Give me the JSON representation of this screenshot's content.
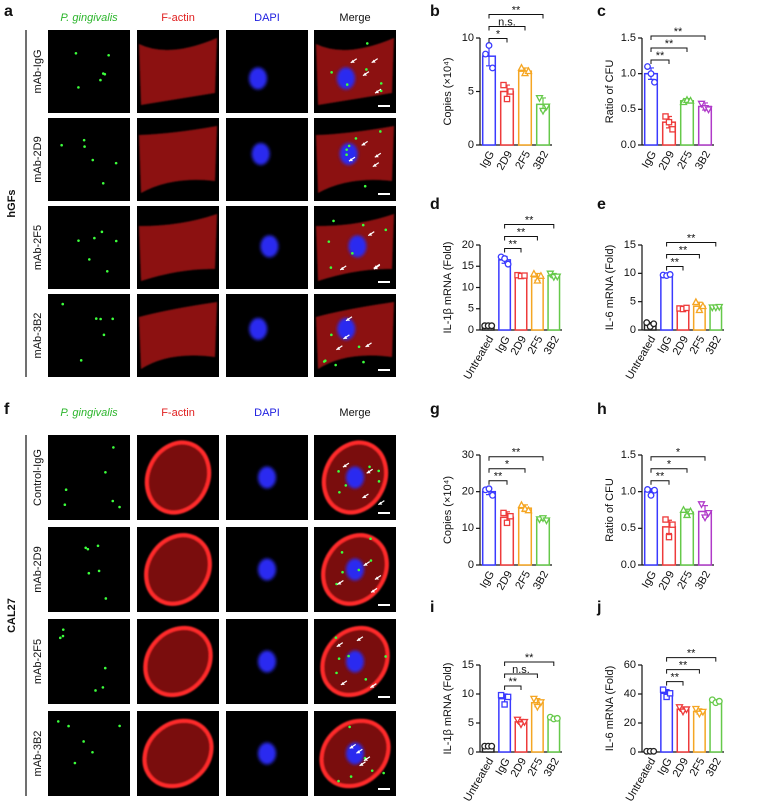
{
  "image_panels": [
    {
      "label": "a",
      "group": "hGFs",
      "columns": [
        "P. gingivalis",
        "F-actin",
        "DAPI",
        "Merge"
      ],
      "rows": [
        "mAb-IgG",
        "mAb-2D9",
        "mAb-2F5",
        "mAb-3B2"
      ]
    },
    {
      "label": "f",
      "group": "CAL27",
      "columns": [
        "P. gingivalis",
        "F-actin",
        "DAPI",
        "Merge"
      ],
      "rows": [
        "Control-IgG",
        "mAb-2D9",
        "mAb-2F5",
        "mAb-3B2"
      ]
    }
  ],
  "chart_data": [
    {
      "type": "bar",
      "label": "b",
      "ylabel": "Copies (×10⁴)",
      "categories": [
        "IgG",
        "2D9",
        "2F5",
        "3B2"
      ],
      "values": [
        8.3,
        5.0,
        6.9,
        3.8
      ],
      "errors": [
        0.9,
        0.6,
        0.3,
        0.6
      ],
      "points": [
        [
          8.5,
          9.3,
          7.2
        ],
        [
          5.6,
          4.3,
          5.0
        ],
        [
          7.2,
          6.7,
          6.9
        ],
        [
          4.4,
          3.2,
          3.6
        ]
      ],
      "colors": [
        "#3a3aff",
        "#ee3b3b",
        "#f5a623",
        "#66c94a"
      ],
      "markers": [
        "circle",
        "square",
        "triangle",
        "down"
      ],
      "ylim": [
        0,
        10
      ],
      "yticks": [
        0,
        5,
        10
      ],
      "annotations": [
        {
          "between": [
            "IgG",
            "2D9"
          ],
          "label": "*"
        },
        {
          "between": [
            "IgG",
            "2F5"
          ],
          "label": "n.s."
        },
        {
          "between": [
            "IgG",
            "3B2"
          ],
          "label": "**"
        }
      ]
    },
    {
      "type": "bar",
      "label": "c",
      "ylabel": "Ratio of CFU",
      "categories": [
        "IgG",
        "2D9",
        "2F5",
        "3B2"
      ],
      "values": [
        1.0,
        0.32,
        0.62,
        0.54
      ],
      "errors": [
        0.08,
        0.08,
        0.03,
        0.05
      ],
      "points": [
        [
          1.1,
          1.0,
          0.88
        ],
        [
          0.4,
          0.32,
          0.22
        ],
        [
          0.6,
          0.63,
          0.62
        ],
        [
          0.58,
          0.52,
          0.5
        ]
      ],
      "colors": [
        "#3a3aff",
        "#ee3b3b",
        "#66c94a",
        "#b03ac9"
      ],
      "markers": [
        "circle",
        "square",
        "triangle",
        "down"
      ],
      "ylim": [
        0,
        1.5
      ],
      "yticks": [
        {
          "value": 0,
          "label": "0.0"
        },
        {
          "value": 0.5,
          "label": "0.5"
        },
        {
          "value": 1,
          "label": "1.0"
        },
        {
          "value": 1.5,
          "label": "1.5"
        }
      ],
      "annotations": [
        {
          "between": [
            "IgG",
            "2D9"
          ],
          "label": "**"
        },
        {
          "between": [
            "IgG",
            "2F5"
          ],
          "label": "**"
        },
        {
          "between": [
            "IgG",
            "3B2"
          ],
          "label": "**"
        }
      ]
    },
    {
      "type": "bar",
      "label": "d",
      "ylabel": "IL-1β mRNA (Fold)",
      "categories": [
        "Untreated",
        "IgG",
        "2D9",
        "2F5",
        "3B2"
      ],
      "values": [
        1.0,
        16.5,
        12.8,
        12.5,
        12.8
      ],
      "errors": [
        0.1,
        0.8,
        0.3,
        0.8,
        0.5
      ],
      "points": [
        [
          1.0,
          1.0,
          1.0
        ],
        [
          17.2,
          16.8,
          15.5
        ],
        [
          12.9,
          12.7,
          12.8
        ],
        [
          13.2,
          11.6,
          12.7
        ],
        [
          13.3,
          12.5,
          12.6
        ]
      ],
      "colors": [
        "#222222",
        "#3a3aff",
        "#ee3b3b",
        "#f5a623",
        "#66c94a"
      ],
      "markers": [
        "circle",
        "circle",
        "square",
        "triangle",
        "down"
      ],
      "ylim": [
        0,
        20
      ],
      "yticks": [
        0,
        5,
        10,
        15,
        20
      ],
      "annotations": [
        {
          "between": [
            "IgG",
            "2D9"
          ],
          "label": "**"
        },
        {
          "between": [
            "IgG",
            "2F5"
          ],
          "label": "**"
        },
        {
          "between": [
            "IgG",
            "3B2"
          ],
          "label": "**"
        }
      ]
    },
    {
      "type": "bar",
      "label": "e",
      "ylabel": "IL-6 mRNA (Fold)",
      "categories": [
        "Untreated",
        "IgG",
        "2D9",
        "2F5",
        "3B2"
      ],
      "values": [
        1.0,
        9.7,
        3.8,
        4.2,
        4.0
      ],
      "errors": [
        0.3,
        0.1,
        0.1,
        0.7,
        0.1
      ],
      "points": [
        [
          1.3,
          0.6,
          1.1
        ],
        [
          9.7,
          9.6,
          9.8
        ],
        [
          3.8,
          3.7,
          3.9
        ],
        [
          4.9,
          3.5,
          4.2
        ],
        [
          4.0,
          4.0,
          4.1
        ]
      ],
      "colors": [
        "#222222",
        "#3a3aff",
        "#ee3b3b",
        "#f5a623",
        "#66c94a"
      ],
      "markers": [
        "circle",
        "circle",
        "square",
        "triangle",
        "down"
      ],
      "ylim": [
        0,
        15
      ],
      "yticks": [
        0,
        5,
        10,
        15
      ],
      "annotations": [
        {
          "between": [
            "IgG",
            "2D9"
          ],
          "label": "**"
        },
        {
          "between": [
            "IgG",
            "2F5"
          ],
          "label": "**"
        },
        {
          "between": [
            "IgG",
            "3B2"
          ],
          "label": "**"
        }
      ]
    },
    {
      "type": "bar",
      "label": "g",
      "ylabel": "Copies (×10⁴)",
      "categories": [
        "IgG",
        "2D9",
        "2F5",
        "3B2"
      ],
      "values": [
        20.0,
        13.0,
        15.5,
        12.5
      ],
      "errors": [
        0.8,
        1.5,
        0.9,
        0.3
      ],
      "points": [
        [
          20.5,
          20.8,
          19.0
        ],
        [
          14.2,
          11.5,
          13.3
        ],
        [
          16.3,
          15.3,
          14.9
        ],
        [
          12.5,
          12.8,
          12.2
        ]
      ],
      "colors": [
        "#3a3aff",
        "#ee3b3b",
        "#f5a623",
        "#66c94a"
      ],
      "markers": [
        "circle",
        "square",
        "triangle",
        "down"
      ],
      "ylim": [
        0,
        30
      ],
      "yticks": [
        0,
        10,
        20,
        30
      ],
      "annotations": [
        {
          "between": [
            "IgG",
            "2D9"
          ],
          "label": "**"
        },
        {
          "between": [
            "IgG",
            "2F5"
          ],
          "label": "*"
        },
        {
          "between": [
            "IgG",
            "3B2"
          ],
          "label": "**"
        }
      ]
    },
    {
      "type": "bar",
      "label": "h",
      "ylabel": "Ratio of CFU",
      "categories": [
        "IgG",
        "2D9",
        "2F5",
        "3B2"
      ],
      "values": [
        1.0,
        0.52,
        0.72,
        0.73
      ],
      "errors": [
        0.04,
        0.09,
        0.04,
        0.08
      ],
      "points": [
        [
          1.03,
          0.95,
          1.02
        ],
        [
          0.62,
          0.38,
          0.55
        ],
        [
          0.75,
          0.68,
          0.73
        ],
        [
          0.83,
          0.65,
          0.71
        ]
      ],
      "colors": [
        "#3a3aff",
        "#ee3b3b",
        "#66c94a",
        "#b03ac9"
      ],
      "markers": [
        "circle",
        "square",
        "triangle",
        "down"
      ],
      "ylim": [
        0,
        1.5
      ],
      "yticks": [
        {
          "value": 0,
          "label": "0.0"
        },
        {
          "value": 0.5,
          "label": "0.5"
        },
        {
          "value": 1,
          "label": "1.0"
        },
        {
          "value": 1.5,
          "label": "1.5"
        }
      ],
      "annotations": [
        {
          "between": [
            "IgG",
            "2D9"
          ],
          "label": "**"
        },
        {
          "between": [
            "IgG",
            "2F5"
          ],
          "label": "*"
        },
        {
          "between": [
            "IgG",
            "3B2"
          ],
          "label": "*"
        }
      ]
    },
    {
      "type": "bar",
      "label": "i",
      "ylabel": "IL-1β mRNA (Fold)",
      "categories": [
        "Untreated",
        "IgG",
        "2D9",
        "2F5",
        "3B2"
      ],
      "values": [
        1.0,
        9.2,
        5.2,
        8.5,
        5.8
      ],
      "errors": [
        0.05,
        0.8,
        0.4,
        0.7,
        0.2
      ],
      "points": [
        [
          1.0,
          1.0,
          1.0
        ],
        [
          9.8,
          8.2,
          9.5
        ],
        [
          5.6,
          4.8,
          5.2
        ],
        [
          9.2,
          7.8,
          8.6
        ],
        [
          6.0,
          5.7,
          5.8
        ]
      ],
      "colors": [
        "#222222",
        "#3a3aff",
        "#ee3b3b",
        "#f5a623",
        "#66c94a"
      ],
      "markers": [
        "circle",
        "square",
        "down",
        "down",
        "circle"
      ],
      "ylim": [
        0,
        15
      ],
      "yticks": [
        0,
        5,
        10,
        15
      ],
      "annotations": [
        {
          "between": [
            "IgG",
            "2D9"
          ],
          "label": "**"
        },
        {
          "between": [
            "IgG",
            "2F5"
          ],
          "label": "n.s."
        },
        {
          "between": [
            "IgG",
            "3B2"
          ],
          "label": "**"
        }
      ]
    },
    {
      "type": "bar",
      "label": "j",
      "ylabel": "IL-6 mRNA (Fold)",
      "categories": [
        "Untreated",
        "IgG",
        "2D9",
        "2F5",
        "3B2"
      ],
      "values": [
        0.5,
        40.5,
        29.5,
        28.0,
        35.0
      ],
      "errors": [
        0.1,
        2.5,
        1.5,
        1.8,
        1.0
      ],
      "points": [
        [
          0.5,
          0.5,
          0.5
        ],
        [
          43.0,
          38.0,
          40.5
        ],
        [
          31.0,
          28.0,
          29.5
        ],
        [
          29.8,
          26.5,
          27.8
        ],
        [
          36.0,
          34.0,
          35.0
        ]
      ],
      "colors": [
        "#222222",
        "#3a3aff",
        "#ee3b3b",
        "#f5a623",
        "#66c94a"
      ],
      "markers": [
        "circle",
        "square",
        "down",
        "down",
        "circle"
      ],
      "ylim": [
        0,
        60
      ],
      "yticks": [
        0,
        20,
        40,
        60
      ],
      "annotations": [
        {
          "between": [
            "IgG",
            "2D9"
          ],
          "label": "**"
        },
        {
          "between": [
            "IgG",
            "2F5"
          ],
          "label": "**"
        },
        {
          "between": [
            "IgG",
            "3B2"
          ],
          "label": "**"
        }
      ]
    }
  ]
}
